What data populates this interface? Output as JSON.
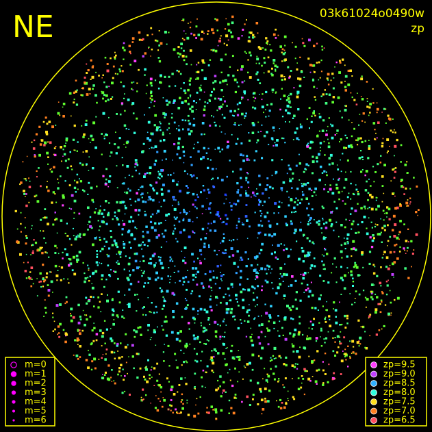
{
  "header": {
    "direction": "NE",
    "frame_id": "03k61024o0490w",
    "mode": "zp"
  },
  "magnitude_legend": {
    "items": [
      {
        "label": "m=0"
      },
      {
        "label": "m=1"
      },
      {
        "label": "m=2"
      },
      {
        "label": "m=3"
      },
      {
        "label": "m=4"
      },
      {
        "label": "m=5"
      },
      {
        "label": "m=6"
      }
    ],
    "color": "#ff00ff"
  },
  "zp_legend": {
    "items": [
      {
        "label": "zp=9.5",
        "color": "#ff40ff"
      },
      {
        "label": "zp=9.0",
        "color": "#c040ff"
      },
      {
        "label": "zp=8.5",
        "color": "#30b0ff"
      },
      {
        "label": "zp=8.0",
        "color": "#30ffe0"
      },
      {
        "label": "zp=7.5",
        "color": "#ffe020"
      },
      {
        "label": "zp=7.0",
        "color": "#ff8020"
      },
      {
        "label": "zp=6.5",
        "color": "#ff5060"
      }
    ]
  }
}
